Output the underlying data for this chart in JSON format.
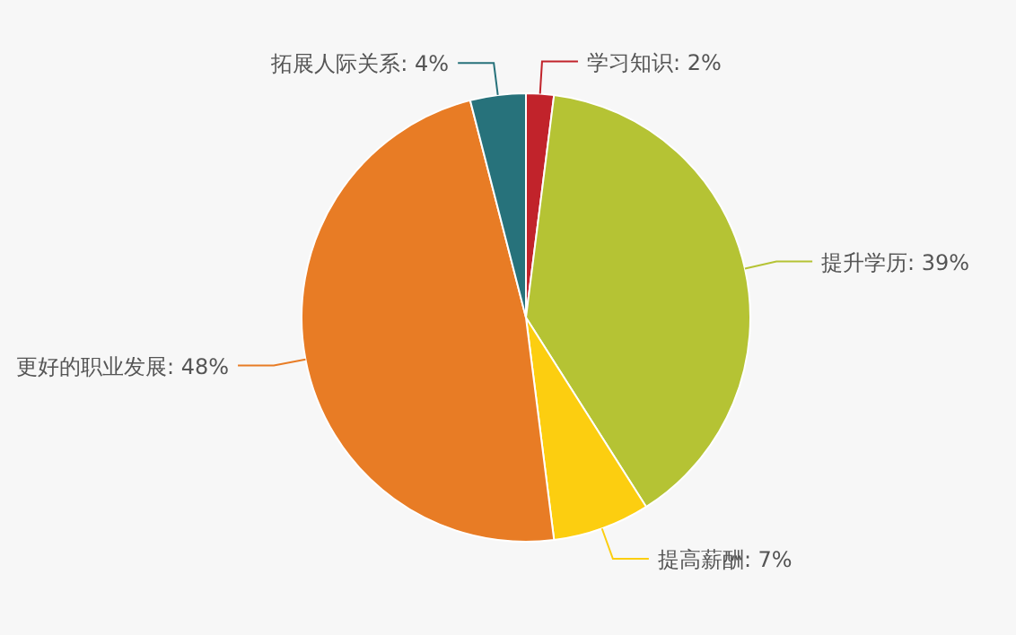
{
  "chart_data": {
    "type": "pie",
    "categories": [
      "学习知识",
      "提升学历",
      "提高薪酬",
      "更好的职业发展",
      "拓展人际关系"
    ],
    "values": [
      2,
      39,
      7,
      48,
      4
    ],
    "value_labels": [
      "2%",
      "39%",
      "7%",
      "48%",
      "4%"
    ],
    "colors": [
      "#c1232b",
      "#b5c334",
      "#fcce10",
      "#e87c25",
      "#27727b"
    ]
  }
}
